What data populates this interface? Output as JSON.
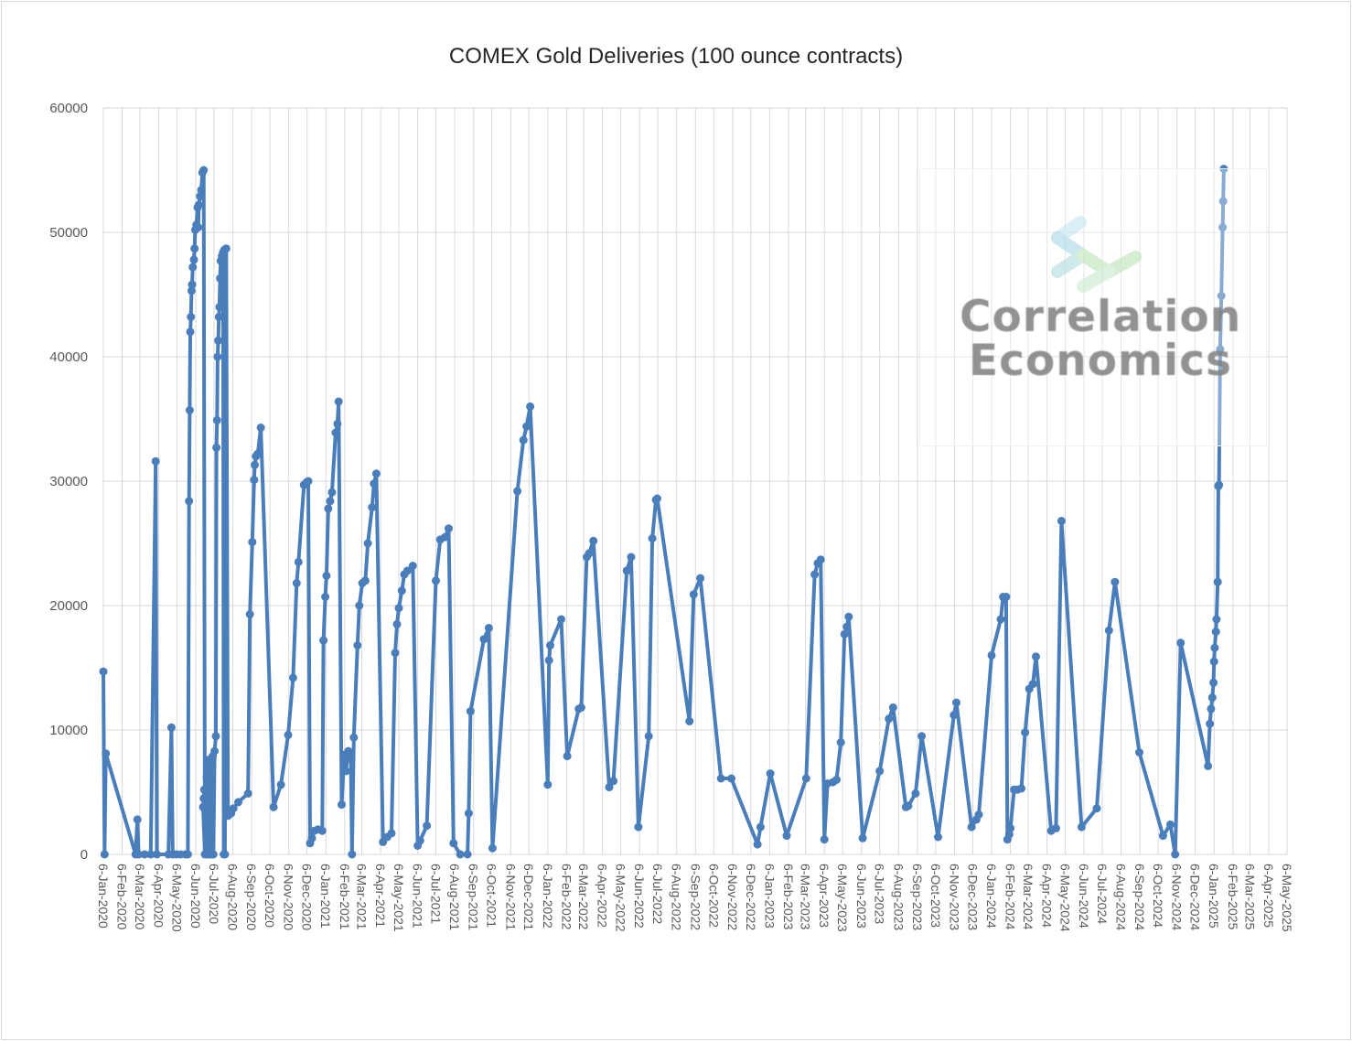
{
  "chart_data": {
    "type": "line",
    "title": "COMEX Gold Deliveries (100 ounce contracts)",
    "xlabel": "",
    "ylabel": "",
    "ylim": [
      0,
      60000
    ],
    "yticks": [
      0,
      10000,
      20000,
      30000,
      40000,
      50000,
      60000
    ],
    "grid": true,
    "legend": "none",
    "x_axis_labels": [
      "6-Jan-2020",
      "6-Feb-2020",
      "6-Mar-2020",
      "6-Apr-2020",
      "6-May-2020",
      "6-Jun-2020",
      "6-Jul-2020",
      "6-Aug-2020",
      "6-Sep-2020",
      "6-Oct-2020",
      "6-Nov-2020",
      "6-Dec-2020",
      "6-Jan-2021",
      "6-Feb-2021",
      "6-Mar-2021",
      "6-Apr-2021",
      "6-May-2021",
      "6-Jun-2021",
      "6-Jul-2021",
      "6-Aug-2021",
      "6-Sep-2021",
      "6-Oct-2021",
      "6-Nov-2021",
      "6-Dec-2021",
      "6-Jan-2022",
      "6-Feb-2022",
      "6-Mar-2022",
      "6-Apr-2022",
      "6-May-2022",
      "6-Jun-2022",
      "6-Jul-2022",
      "6-Aug-2022",
      "6-Sep-2022",
      "6-Oct-2022",
      "6-Nov-2022",
      "6-Dec-2022",
      "6-Jan-2023",
      "6-Feb-2023",
      "6-Mar-2023",
      "6-Apr-2023",
      "6-May-2023",
      "6-Jun-2023",
      "6-Jul-2023",
      "6-Aug-2023",
      "6-Sep-2023",
      "6-Oct-2023",
      "6-Nov-2023",
      "6-Dec-2023",
      "6-Jan-2024",
      "6-Feb-2024",
      "6-Mar-2024",
      "6-Apr-2024",
      "6-May-2024",
      "6-Jun-2024",
      "6-Jul-2024",
      "6-Aug-2024",
      "6-Sep-2024",
      "6-Oct-2024",
      "6-Nov-2024",
      "6-Dec-2024",
      "6-Jan-2025",
      "6-Feb-2025",
      "6-Mar-2025",
      "6-Apr-2025",
      "6-May-2025"
    ],
    "series": [
      {
        "color": "#4a7ebb",
        "points": [
          [
            "2020-01-06",
            14700
          ],
          [
            "2020-01-08",
            0
          ],
          [
            "2020-01-10",
            8100
          ],
          [
            "2020-02-28",
            0
          ],
          [
            "2020-03-02",
            2800
          ],
          [
            "2020-03-04",
            0
          ],
          [
            "2020-03-14",
            0
          ],
          [
            "2020-03-24",
            0
          ],
          [
            "2020-04-01",
            31600
          ],
          [
            "2020-04-03",
            0
          ],
          [
            "2020-04-22",
            0
          ],
          [
            "2020-04-27",
            10200
          ],
          [
            "2020-04-29",
            0
          ],
          [
            "2020-05-05",
            0
          ],
          [
            "2020-05-12",
            0
          ],
          [
            "2020-05-20",
            0
          ],
          [
            "2020-05-24",
            0
          ],
          [
            "2020-05-26",
            28400
          ],
          [
            "2020-05-27",
            35700
          ],
          [
            "2020-05-28",
            42000
          ],
          [
            "2020-05-29",
            43200
          ],
          [
            "2020-05-30",
            45300
          ],
          [
            "2020-05-31",
            45800
          ],
          [
            "2020-06-01",
            47200
          ],
          [
            "2020-06-03",
            47800
          ],
          [
            "2020-06-04",
            48700
          ],
          [
            "2020-06-05",
            50200
          ],
          [
            "2020-06-07",
            50600
          ],
          [
            "2020-06-09",
            52000
          ],
          [
            "2020-06-10",
            50400
          ],
          [
            "2020-06-11",
            52200
          ],
          [
            "2020-06-13",
            52900
          ],
          [
            "2020-06-15",
            53400
          ],
          [
            "2020-06-17",
            54800
          ],
          [
            "2020-06-19",
            55000
          ],
          [
            "2020-06-21",
            0
          ],
          [
            "2020-06-18",
            3800
          ],
          [
            "2020-06-19",
            4500
          ],
          [
            "2020-06-20",
            5200
          ],
          [
            "2020-06-23",
            0
          ],
          [
            "2020-06-24",
            6200
          ],
          [
            "2020-06-25",
            7200
          ],
          [
            "2020-06-26",
            0
          ],
          [
            "2020-06-27",
            7600
          ],
          [
            "2020-06-29",
            0
          ],
          [
            "2020-07-01",
            7400
          ],
          [
            "2020-07-02",
            0
          ],
          [
            "2020-07-04",
            7900
          ],
          [
            "2020-07-05",
            0
          ],
          [
            "2020-07-07",
            8300
          ],
          [
            "2020-07-09",
            9500
          ],
          [
            "2020-07-10",
            32700
          ],
          [
            "2020-07-11",
            34900
          ],
          [
            "2020-07-12",
            40000
          ],
          [
            "2020-07-13",
            41300
          ],
          [
            "2020-07-14",
            43200
          ],
          [
            "2020-07-15",
            44000
          ],
          [
            "2020-07-16",
            46300
          ],
          [
            "2020-07-17",
            47700
          ],
          [
            "2020-07-19",
            48100
          ],
          [
            "2020-07-21",
            48400
          ],
          [
            "2020-07-22",
            0
          ],
          [
            "2020-07-23",
            48600
          ],
          [
            "2020-07-24",
            0
          ],
          [
            "2020-07-26",
            48700
          ],
          [
            "2020-07-29",
            3100
          ],
          [
            "2020-08-03",
            3300
          ],
          [
            "2020-08-07",
            3700
          ],
          [
            "2020-08-15",
            4200
          ],
          [
            "2020-08-31",
            4900
          ],
          [
            "2020-09-03",
            19300
          ],
          [
            "2020-09-07",
            25100
          ],
          [
            "2020-09-10",
            30100
          ],
          [
            "2020-09-11",
            31300
          ],
          [
            "2020-09-13",
            32000
          ],
          [
            "2020-09-16",
            32200
          ],
          [
            "2020-09-21",
            34300
          ],
          [
            "2020-10-12",
            3800
          ],
          [
            "2020-10-24",
            5600
          ],
          [
            "2020-11-05",
            9600
          ],
          [
            "2020-11-13",
            14200
          ],
          [
            "2020-11-19",
            21800
          ],
          [
            "2020-11-22",
            23500
          ],
          [
            "2020-12-01",
            29700
          ],
          [
            "2020-12-05",
            29900
          ],
          [
            "2020-12-08",
            30000
          ],
          [
            "2020-12-11",
            900
          ],
          [
            "2020-12-14",
            1300
          ],
          [
            "2020-12-18",
            1900
          ],
          [
            "2020-12-24",
            2000
          ],
          [
            "2020-12-31",
            1900
          ],
          [
            "2021-01-02",
            17200
          ],
          [
            "2021-01-05",
            20700
          ],
          [
            "2021-01-07",
            22400
          ],
          [
            "2021-01-10",
            27800
          ],
          [
            "2021-01-13",
            28400
          ],
          [
            "2021-01-16",
            29100
          ],
          [
            "2021-01-22",
            33900
          ],
          [
            "2021-01-25",
            34600
          ],
          [
            "2021-01-27",
            36400
          ],
          [
            "2021-02-01",
            4000
          ],
          [
            "2021-02-05",
            8000
          ],
          [
            "2021-02-08",
            6700
          ],
          [
            "2021-02-12",
            8300
          ],
          [
            "2021-02-16",
            8100
          ],
          [
            "2021-02-18",
            0
          ],
          [
            "2021-02-21",
            9400
          ],
          [
            "2021-02-27",
            16800
          ],
          [
            "2021-03-02",
            20000
          ],
          [
            "2021-03-07",
            21800
          ],
          [
            "2021-03-12",
            22000
          ],
          [
            "2021-03-16",
            25000
          ],
          [
            "2021-03-23",
            27900
          ],
          [
            "2021-03-26",
            29800
          ],
          [
            "2021-03-30",
            30600
          ],
          [
            "2021-04-10",
            1000
          ],
          [
            "2021-04-17",
            1400
          ],
          [
            "2021-04-24",
            1700
          ],
          [
            "2021-04-30",
            16200
          ],
          [
            "2021-05-03",
            18500
          ],
          [
            "2021-05-06",
            19800
          ],
          [
            "2021-05-11",
            21200
          ],
          [
            "2021-05-15",
            22500
          ],
          [
            "2021-05-20",
            22800
          ],
          [
            "2021-05-29",
            23200
          ],
          [
            "2021-06-06",
            700
          ],
          [
            "2021-06-10",
            1100
          ],
          [
            "2021-06-21",
            2300
          ],
          [
            "2021-07-06",
            22000
          ],
          [
            "2021-07-13",
            25300
          ],
          [
            "2021-07-21",
            25500
          ],
          [
            "2021-07-27",
            26200
          ],
          [
            "2021-08-04",
            900
          ],
          [
            "2021-08-15",
            0
          ],
          [
            "2021-08-27",
            0
          ],
          [
            "2021-08-29",
            3300
          ],
          [
            "2021-09-01",
            11500
          ],
          [
            "2021-09-23",
            17300
          ],
          [
            "2021-10-01",
            18200
          ],
          [
            "2021-10-07",
            500
          ],
          [
            "2021-11-17",
            29200
          ],
          [
            "2021-11-27",
            33300
          ],
          [
            "2021-12-02",
            34400
          ],
          [
            "2021-12-08",
            36000
          ],
          [
            "2022-01-06",
            5600
          ],
          [
            "2022-01-08",
            15600
          ],
          [
            "2022-01-10",
            16800
          ],
          [
            "2022-01-28",
            18900
          ],
          [
            "2022-02-07",
            7900
          ],
          [
            "2022-02-26",
            11700
          ],
          [
            "2022-03-02",
            11800
          ],
          [
            "2022-03-11",
            23900
          ],
          [
            "2022-03-15",
            24200
          ],
          [
            "2022-03-22",
            25200
          ],
          [
            "2022-04-17",
            5400
          ],
          [
            "2022-04-24",
            5900
          ],
          [
            "2022-05-16",
            22800
          ],
          [
            "2022-05-23",
            23900
          ],
          [
            "2022-06-04",
            2200
          ],
          [
            "2022-06-21",
            9500
          ],
          [
            "2022-06-27",
            25400
          ],
          [
            "2022-07-03",
            28500
          ],
          [
            "2022-07-05",
            28600
          ],
          [
            "2022-08-27",
            10700
          ],
          [
            "2022-09-03",
            20900
          ],
          [
            "2022-09-14",
            22200
          ],
          [
            "2022-10-18",
            6100
          ],
          [
            "2022-11-04",
            6100
          ],
          [
            "2022-12-17",
            800
          ],
          [
            "2022-12-22",
            2200
          ],
          [
            "2023-01-07",
            6500
          ],
          [
            "2023-02-03",
            1500
          ],
          [
            "2023-03-07",
            6100
          ],
          [
            "2023-03-21",
            22500
          ],
          [
            "2023-03-26",
            23400
          ],
          [
            "2023-03-31",
            23700
          ],
          [
            "2023-04-06",
            1200
          ],
          [
            "2023-04-11",
            5700
          ],
          [
            "2023-04-20",
            5800
          ],
          [
            "2023-04-26",
            6000
          ],
          [
            "2023-05-03",
            9000
          ],
          [
            "2023-05-09",
            17700
          ],
          [
            "2023-05-13",
            18300
          ],
          [
            "2023-05-16",
            19100
          ],
          [
            "2023-06-08",
            1300
          ],
          [
            "2023-07-06",
            6700
          ],
          [
            "2023-07-21",
            10900
          ],
          [
            "2023-07-28",
            11800
          ],
          [
            "2023-08-18",
            3800
          ],
          [
            "2023-08-22",
            3900
          ],
          [
            "2023-09-03",
            4900
          ],
          [
            "2023-09-13",
            9500
          ],
          [
            "2023-10-10",
            1400
          ],
          [
            "2023-11-05",
            11200
          ],
          [
            "2023-11-09",
            12200
          ],
          [
            "2023-12-04",
            2200
          ],
          [
            "2023-12-12",
            2800
          ],
          [
            "2023-12-16",
            3200
          ],
          [
            "2024-01-06",
            16000
          ],
          [
            "2024-01-21",
            18900
          ],
          [
            "2024-01-25",
            20700
          ],
          [
            "2024-01-30",
            20700
          ],
          [
            "2024-02-01",
            1200
          ],
          [
            "2024-02-04",
            1600
          ],
          [
            "2024-02-06",
            2100
          ],
          [
            "2024-02-12",
            5200
          ],
          [
            "2024-02-17",
            5200
          ],
          [
            "2024-02-24",
            5300
          ],
          [
            "2024-03-01",
            9800
          ],
          [
            "2024-03-08",
            13300
          ],
          [
            "2024-03-14",
            13700
          ],
          [
            "2024-03-19",
            15900
          ],
          [
            "2024-04-13",
            1900
          ],
          [
            "2024-04-21",
            2100
          ],
          [
            "2024-04-30",
            26800
          ],
          [
            "2024-06-02",
            2200
          ],
          [
            "2024-06-27",
            3700
          ],
          [
            "2024-07-17",
            18000
          ],
          [
            "2024-07-27",
            21900
          ],
          [
            "2024-09-05",
            8200
          ],
          [
            "2024-10-14",
            1500
          ],
          [
            "2024-10-26",
            2400
          ],
          [
            "2024-11-03",
            0
          ],
          [
            "2024-11-12",
            17000
          ],
          [
            "2024-12-27",
            7100
          ],
          [
            "2024-12-30",
            10500
          ],
          [
            "2025-01-01",
            11700
          ],
          [
            "2025-01-03",
            12600
          ],
          [
            "2025-01-05",
            13800
          ],
          [
            "2025-01-06",
            15500
          ],
          [
            "2025-01-07",
            16600
          ],
          [
            "2025-01-09",
            17900
          ],
          [
            "2025-01-10",
            18900
          ],
          [
            "2025-01-12",
            21900
          ],
          [
            "2025-01-13",
            29600
          ],
          [
            "2025-01-14",
            29700
          ],
          [
            "2025-01-16",
            40600
          ],
          [
            "2025-01-18",
            44900
          ],
          [
            "2025-01-20",
            50400
          ],
          [
            "2025-01-21",
            52500
          ],
          [
            "2025-01-22",
            55100
          ]
        ]
      }
    ]
  },
  "watermark": {
    "line1": "Correlation",
    "line2": "Economics"
  }
}
